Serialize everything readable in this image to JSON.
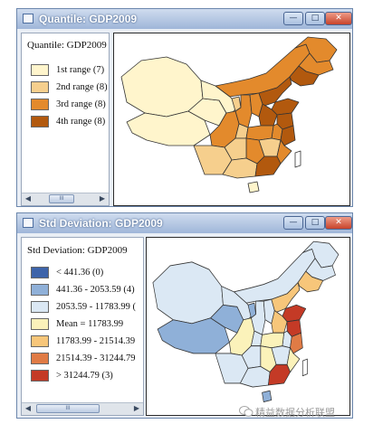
{
  "window1": {
    "title": "Quantile: GDP2009",
    "legend_title": "Quantile: GDP2009",
    "items": [
      {
        "label": "1st range (7)",
        "color": "#fff5cc"
      },
      {
        "label": "2nd range (8)",
        "color": "#f6cf8d"
      },
      {
        "label": "3rd range (8)",
        "color": "#e38a2c"
      },
      {
        "label": "4th range (8)",
        "color": "#b2590e"
      }
    ],
    "scroll_thumb": "III"
  },
  "window2": {
    "title": "Std Deviation: GDP2009",
    "legend_title": "Std Deviation: GDP2009",
    "items": [
      {
        "label": "< 441.36 (0)",
        "color": "#3e64aa"
      },
      {
        "label": "441.36 - 2053.59 (4)",
        "color": "#8fb0d8"
      },
      {
        "label": "2053.59 - 11783.99 (",
        "color": "#dbe8f4"
      },
      {
        "label": "Mean = 11783.99",
        "color": "#fbf2ba"
      },
      {
        "label": "11783.99 - 21514.39",
        "color": "#f7c67a"
      },
      {
        "label": "21514.39 - 31244.79",
        "color": "#e07b45"
      },
      {
        "label": "> 31244.79 (3)",
        "color": "#c43a26"
      }
    ],
    "scroll_thumb": "III"
  },
  "window_buttons": {
    "minimize": "—",
    "maximize": "□",
    "close": "✕"
  },
  "watermark": {
    "text": "精益数据分析联盟"
  }
}
